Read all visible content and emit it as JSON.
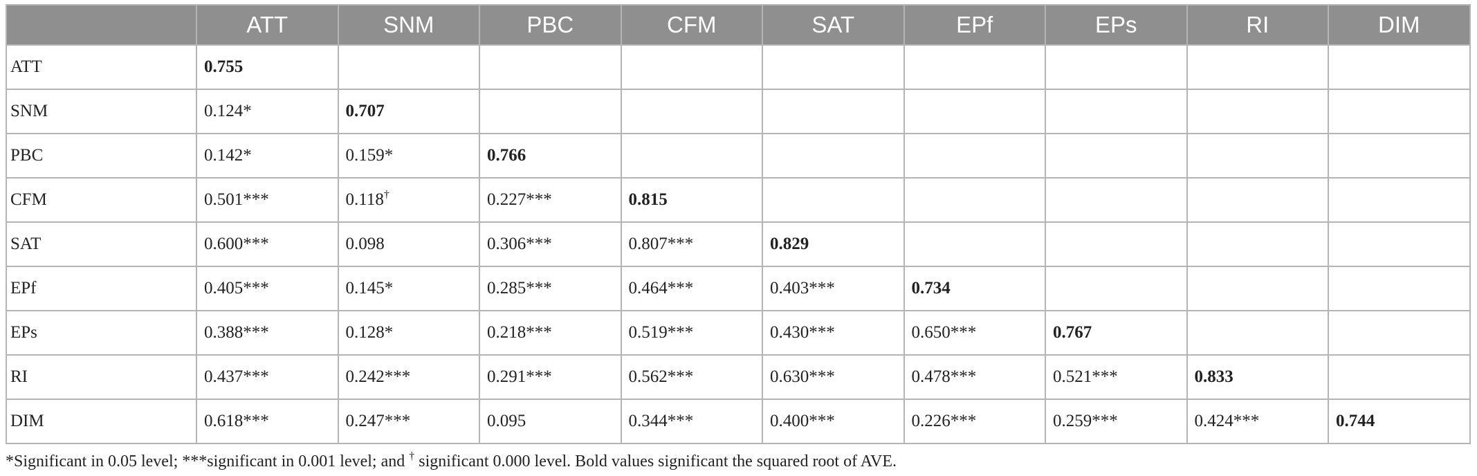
{
  "table": {
    "columns": [
      "ATT",
      "SNM",
      "PBC",
      "CFM",
      "SAT",
      "EPf",
      "EPs",
      "RI",
      "DIM"
    ],
    "rows": [
      {
        "label": "ATT",
        "cells": [
          "0.755",
          "",
          "",
          "",
          "",
          "",
          "",
          "",
          ""
        ],
        "diag": 0
      },
      {
        "label": "SNM",
        "cells": [
          "0.124*",
          "0.707",
          "",
          "",
          "",
          "",
          "",
          "",
          ""
        ],
        "diag": 1
      },
      {
        "label": "PBC",
        "cells": [
          "0.142*",
          "0.159*",
          "0.766",
          "",
          "",
          "",
          "",
          "",
          ""
        ],
        "diag": 2
      },
      {
        "label": "CFM",
        "cells": [
          "0.501***",
          "0.118†",
          "0.227***",
          "0.815",
          "",
          "",
          "",
          "",
          ""
        ],
        "diag": 3
      },
      {
        "label": "SAT",
        "cells": [
          "0.600***",
          "0.098",
          "0.306***",
          "0.807***",
          "0.829",
          "",
          "",
          "",
          ""
        ],
        "diag": 4
      },
      {
        "label": "EPf",
        "cells": [
          "0.405***",
          "0.145*",
          "0.285***",
          "0.464***",
          "0.403***",
          "0.734",
          "",
          "",
          ""
        ],
        "diag": 5
      },
      {
        "label": "EPs",
        "cells": [
          "0.388***",
          "0.128*",
          "0.218***",
          "0.519***",
          "0.430***",
          "0.650***",
          "0.767",
          "",
          ""
        ],
        "diag": 6
      },
      {
        "label": "RI",
        "cells": [
          "0.437***",
          "0.242***",
          "0.291***",
          "0.562***",
          "0.630***",
          "0.478***",
          "0.521***",
          "0.833",
          ""
        ],
        "diag": 7
      },
      {
        "label": "DIM",
        "cells": [
          "0.618***",
          "0.247***",
          "0.095",
          "0.344***",
          "0.400***",
          "0.226***",
          "0.259***",
          "0.424***",
          "0.744"
        ],
        "diag": 8
      }
    ]
  },
  "footnote": {
    "part1": "*Significant in 0.05 level; ***significant in 0.001 level; and ",
    "dagger": "†",
    "part2": " significant 0.000 level. Bold values significant the squared root of AVE."
  },
  "colors": {
    "header_bg": "#8f8f8f",
    "header_text": "#ffffff",
    "border": "#b4b4b4",
    "body_text": "#222222"
  }
}
